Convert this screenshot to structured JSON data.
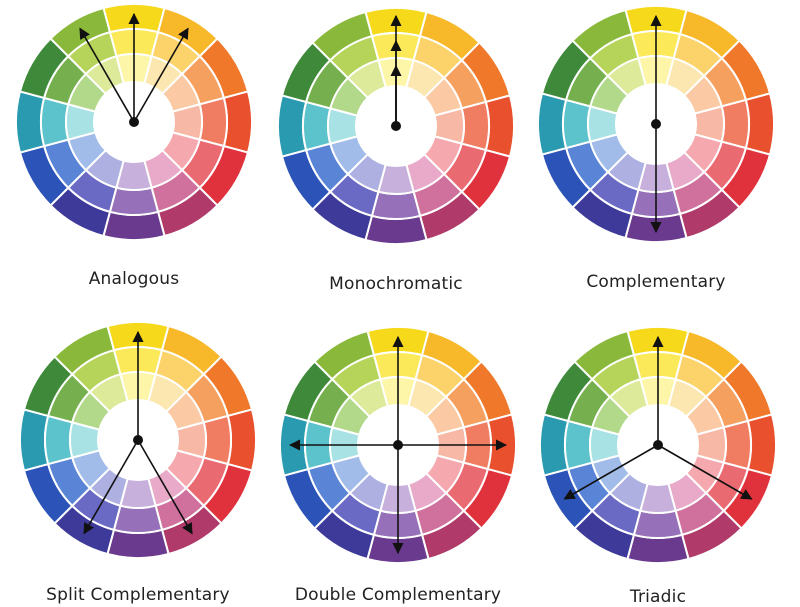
{
  "palette": [
    {
      "hue": "yellow",
      "shades": [
        "#f7d91c",
        "#fbe95a",
        "#fdf5a8"
      ]
    },
    {
      "hue": "yellow-orange",
      "shades": [
        "#f7b82a",
        "#fbd36a",
        "#fde7b0"
      ]
    },
    {
      "hue": "orange",
      "shades": [
        "#f0782a",
        "#f6a060",
        "#fbcaa4"
      ]
    },
    {
      "hue": "red-orange",
      "shades": [
        "#e9502e",
        "#f07d62",
        "#f8b8a6"
      ]
    },
    {
      "hue": "red",
      "shades": [
        "#e0323c",
        "#ea6a72",
        "#f5a8ae"
      ]
    },
    {
      "hue": "red-violet",
      "shades": [
        "#b03a6a",
        "#d0709c",
        "#e8aac8"
      ]
    },
    {
      "hue": "violet",
      "shades": [
        "#6a3a8e",
        "#9670b8",
        "#c8b0dc"
      ]
    },
    {
      "hue": "blue-violet",
      "shades": [
        "#3e3a9a",
        "#6a6ac4",
        "#aeb0e2"
      ]
    },
    {
      "hue": "blue",
      "shades": [
        "#2c54b8",
        "#5a84d6",
        "#a2bcea"
      ]
    },
    {
      "hue": "blue-green",
      "shades": [
        "#2a9ab0",
        "#5cc2cc",
        "#a8e2e4"
      ]
    },
    {
      "hue": "green",
      "shades": [
        "#3e8a3a",
        "#76b04e",
        "#b2d88a"
      ]
    },
    {
      "hue": "yellow-green",
      "shades": [
        "#8ab83a",
        "#b6d45a",
        "#dcea9a"
      ]
    }
  ],
  "schemes": [
    {
      "label": "Analogous",
      "arrows": [
        11,
        0,
        1
      ],
      "mono": false
    },
    {
      "label": "Monochromatic",
      "arrows": [
        0
      ],
      "mono": true
    },
    {
      "label": "Complementary",
      "arrows": [
        0,
        6
      ],
      "mono": false
    },
    {
      "label": "Split Complementary",
      "arrows": [
        0,
        5,
        7
      ],
      "mono": false
    },
    {
      "label": "Double Complementary",
      "arrows": [
        0,
        3,
        6,
        9
      ],
      "mono": false
    },
    {
      "label": "Triadic",
      "arrows": [
        0,
        4,
        8
      ],
      "mono": false
    }
  ]
}
